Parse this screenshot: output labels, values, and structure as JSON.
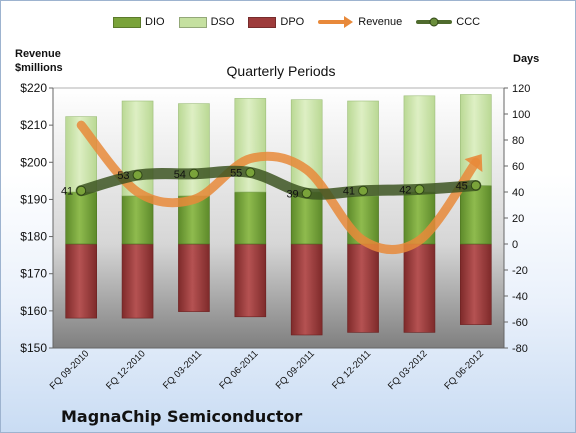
{
  "legend": [
    {
      "key": "dio",
      "label": "DIO",
      "color": "#7aa33a",
      "kind": "bar"
    },
    {
      "key": "dso",
      "label": "DSO",
      "color": "#c5e0a0",
      "kind": "bar"
    },
    {
      "key": "dpo",
      "label": "DPO",
      "color": "#9e3b3b",
      "kind": "bar"
    },
    {
      "key": "revenue",
      "label": "Revenue",
      "color": "#e8893a",
      "kind": "arrow"
    },
    {
      "key": "ccc",
      "label": "CCC",
      "color": "#4f6b2d",
      "kind": "line"
    }
  ],
  "titles": {
    "left_axis": "Revenue\n$millions",
    "right_axis": "Days",
    "subtitle": "Quarterly Periods",
    "company": "MagnaChip Semiconductor"
  },
  "chart_data": {
    "type": "bar",
    "title": "Quarterly Periods",
    "categories": [
      "FQ 09-2010",
      "FQ 12-2010",
      "FQ 03-2011",
      "FQ 06-2011",
      "FQ 09-2011",
      "FQ 12-2011",
      "FQ 03-2012",
      "FQ 06-2012"
    ],
    "left_axis": {
      "label": "Revenue $millions",
      "ylim": [
        150,
        220
      ],
      "ticks": [
        "$150",
        "$160",
        "$170",
        "$180",
        "$190",
        "$200",
        "$210",
        "$220"
      ]
    },
    "right_axis": {
      "label": "Days",
      "ylim": [
        -80,
        120
      ],
      "ticks": [
        "-80",
        "-60",
        "-40",
        "-20",
        "0",
        "20",
        "40",
        "60",
        "80",
        "100",
        "120"
      ]
    },
    "series": [
      {
        "name": "DPO",
        "axis": "days",
        "values": [
          -57,
          -57,
          -52,
          -56,
          -70,
          -68,
          -68,
          -62
        ]
      },
      {
        "name": "DIO",
        "axis": "days",
        "values": [
          40,
          37,
          37,
          40,
          40,
          37,
          40,
          45
        ]
      },
      {
        "name": "DSO",
        "axis": "days",
        "values": [
          58,
          73,
          71,
          72,
          71,
          73,
          74,
          70
        ]
      },
      {
        "name": "Revenue",
        "axis": "revenue",
        "values": [
          210,
          192,
          190,
          201,
          198,
          179,
          179,
          200
        ]
      },
      {
        "name": "CCC",
        "axis": "days",
        "values": [
          41,
          53,
          54,
          55,
          39,
          41,
          42,
          45
        ],
        "labels": [
          "41",
          "53",
          "54",
          "55",
          "39",
          "41",
          "42",
          "45"
        ]
      }
    ],
    "grid": false,
    "legend_position": "top"
  }
}
